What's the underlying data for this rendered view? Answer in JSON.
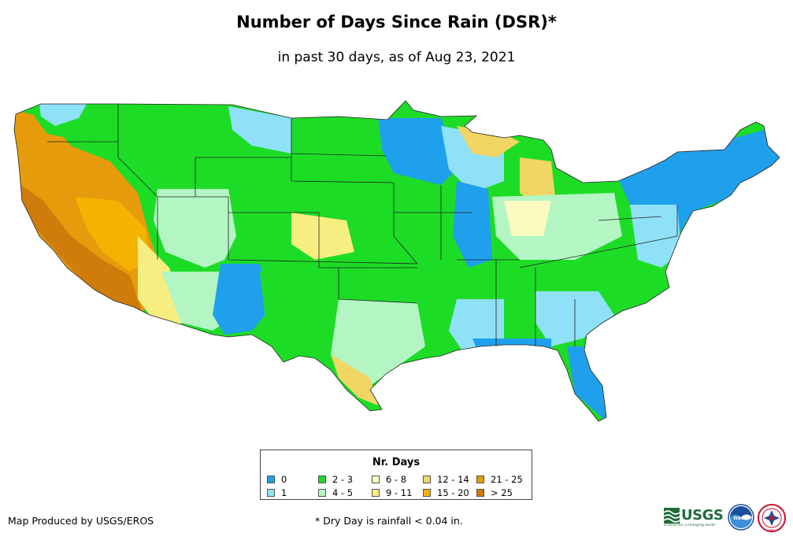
{
  "title": "Number of Days Since Rain (DSR)*",
  "subtitle": "in past 30 days, as of Aug 23, 2021",
  "legend": {
    "title": "Nr. Days",
    "items": [
      {
        "label": "0",
        "color": "#1fa0ec"
      },
      {
        "label": "1",
        "color": "#8fe1f7"
      },
      {
        "label": "2 - 3",
        "color": "#1ddc26"
      },
      {
        "label": "4 - 5",
        "color": "#b3f6c3"
      },
      {
        "label": "6 - 8",
        "color": "#fbfbc2"
      },
      {
        "label": "9 - 11",
        "color": "#f7ee82"
      },
      {
        "label": "12 - 14",
        "color": "#f1d663"
      },
      {
        "label": "15 - 20",
        "color": "#f4b300"
      },
      {
        "label": "21 - 25",
        "color": "#e69b0c"
      },
      {
        "label": "> 25",
        "color": "#cf7c0a"
      }
    ]
  },
  "credit": "Map Produced by USGS/EROS",
  "footnote": "* Dry Day is rainfall < 0.04 in.",
  "logos": {
    "usgs": "USGS",
    "usgs_tagline": "science for a changing world",
    "noaa": "noaa",
    "nws": "NWS"
  }
}
